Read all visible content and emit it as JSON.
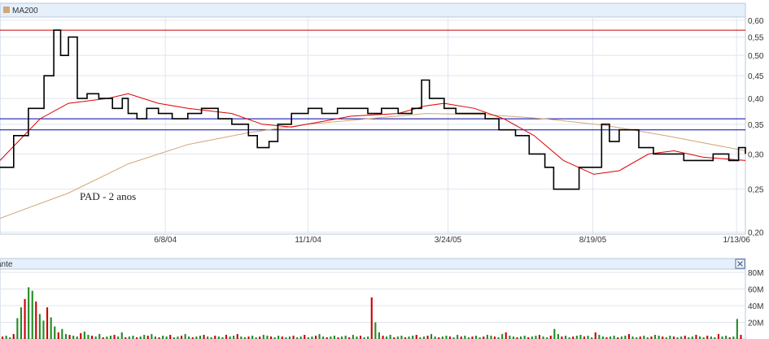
{
  "legend": {
    "ma200_label": "MA200",
    "ma200_color": "#d2a679",
    "volume_label_fragment": "ante"
  },
  "annotation": "PAD - 2 anos",
  "close_icon": "close-icon",
  "colors": {
    "price": "#000000",
    "ma_short": "#dd0000",
    "ma200": "#d2a679",
    "resistance": "#cc0000",
    "support": "#0000aa",
    "volume_up": "#228b22",
    "volume_down": "#cc0000",
    "panel_header": "#e6f0fa"
  },
  "chart_data": [
    {
      "type": "line",
      "title": "",
      "xlabel": "",
      "ylabel": "",
      "ylim": [
        0.2,
        0.6
      ],
      "y_scale": "log",
      "y_ticks": [
        "0,20",
        "0,25",
        "0,30",
        "0,35",
        "0,40",
        "0,45",
        "0,50",
        "0,55",
        "0,60"
      ],
      "x_ticks": [
        "6/8/04",
        "11/1/04",
        "3/24/05",
        "8/19/05",
        "1/13/06"
      ],
      "x_range": [
        "2003-12-22",
        "2006-01-22"
      ],
      "grid": true,
      "horizontal_lines": [
        {
          "kind": "resistance",
          "value": 0.57
        },
        {
          "kind": "support",
          "value": 0.36
        },
        {
          "kind": "support",
          "value": 0.34
        }
      ],
      "series": [
        {
          "name": "",
          "kind": "price",
          "points": [
            [
              "2003-12-22",
              0.28
            ],
            [
              "2004-01-05",
              0.33
            ],
            [
              "2004-01-20",
              0.38
            ],
            [
              "2004-02-05",
              0.45
            ],
            [
              "2004-02-15",
              0.57
            ],
            [
              "2004-02-22",
              0.5
            ],
            [
              "2004-03-01",
              0.55
            ],
            [
              "2004-03-10",
              0.4
            ],
            [
              "2004-03-20",
              0.41
            ],
            [
              "2004-04-01",
              0.4
            ],
            [
              "2004-04-15",
              0.38
            ],
            [
              "2004-04-25",
              0.4
            ],
            [
              "2004-05-01",
              0.37
            ],
            [
              "2004-05-10",
              0.36
            ],
            [
              "2004-05-20",
              0.38
            ],
            [
              "2004-06-01",
              0.37
            ],
            [
              "2004-06-15",
              0.36
            ],
            [
              "2004-07-01",
              0.37
            ],
            [
              "2004-07-15",
              0.38
            ],
            [
              "2004-08-01",
              0.36
            ],
            [
              "2004-08-15",
              0.35
            ],
            [
              "2004-09-01",
              0.33
            ],
            [
              "2004-09-10",
              0.31
            ],
            [
              "2004-09-22",
              0.32
            ],
            [
              "2004-10-01",
              0.35
            ],
            [
              "2004-10-15",
              0.37
            ],
            [
              "2004-11-01",
              0.38
            ],
            [
              "2004-11-15",
              0.37
            ],
            [
              "2004-12-01",
              0.38
            ],
            [
              "2004-12-15",
              0.38
            ],
            [
              "2005-01-01",
              0.37
            ],
            [
              "2005-01-15",
              0.38
            ],
            [
              "2005-02-01",
              0.37
            ],
            [
              "2005-02-15",
              0.38
            ],
            [
              "2005-02-25",
              0.44
            ],
            [
              "2005-03-05",
              0.4
            ],
            [
              "2005-03-20",
              0.38
            ],
            [
              "2005-04-01",
              0.37
            ],
            [
              "2005-04-15",
              0.37
            ],
            [
              "2005-05-01",
              0.36
            ],
            [
              "2005-05-15",
              0.34
            ],
            [
              "2005-06-01",
              0.33
            ],
            [
              "2005-06-15",
              0.3
            ],
            [
              "2005-07-01",
              0.28
            ],
            [
              "2005-07-10",
              0.25
            ],
            [
              "2005-07-25",
              0.25
            ],
            [
              "2005-08-05",
              0.28
            ],
            [
              "2005-08-19",
              0.28
            ],
            [
              "2005-08-28",
              0.35
            ],
            [
              "2005-09-05",
              0.32
            ],
            [
              "2005-09-15",
              0.34
            ],
            [
              "2005-09-25",
              0.34
            ],
            [
              "2005-10-05",
              0.31
            ],
            [
              "2005-10-20",
              0.3
            ],
            [
              "2005-11-05",
              0.3
            ],
            [
              "2005-11-20",
              0.29
            ],
            [
              "2005-12-05",
              0.29
            ],
            [
              "2005-12-20",
              0.3
            ],
            [
              "2006-01-05",
              0.29
            ],
            [
              "2006-01-15",
              0.31
            ],
            [
              "2006-01-22",
              0.3
            ]
          ]
        },
        {
          "name": "",
          "kind": "ma_short",
          "points": [
            [
              "2003-12-22",
              0.29
            ],
            [
              "2004-02-01",
              0.36
            ],
            [
              "2004-03-01",
              0.39
            ],
            [
              "2004-04-10",
              0.4
            ],
            [
              "2004-05-01",
              0.41
            ],
            [
              "2004-06-01",
              0.39
            ],
            [
              "2004-07-01",
              0.38
            ],
            [
              "2004-08-15",
              0.37
            ],
            [
              "2004-09-15",
              0.35
            ],
            [
              "2004-10-15",
              0.345
            ],
            [
              "2004-11-15",
              0.355
            ],
            [
              "2004-12-15",
              0.365
            ],
            [
              "2005-02-01",
              0.37
            ],
            [
              "2005-03-01",
              0.385
            ],
            [
              "2005-03-20",
              0.39
            ],
            [
              "2005-04-20",
              0.38
            ],
            [
              "2005-05-20",
              0.36
            ],
            [
              "2005-06-20",
              0.33
            ],
            [
              "2005-07-20",
              0.29
            ],
            [
              "2005-08-20",
              0.27
            ],
            [
              "2005-09-15",
              0.275
            ],
            [
              "2005-10-15",
              0.3
            ],
            [
              "2005-11-10",
              0.305
            ],
            [
              "2005-12-10",
              0.295
            ],
            [
              "2006-01-22",
              0.29
            ]
          ]
        },
        {
          "name": "MA200",
          "kind": "ma200",
          "points": [
            [
              "2003-12-22",
              0.215
            ],
            [
              "2004-03-01",
              0.245
            ],
            [
              "2004-05-01",
              0.285
            ],
            [
              "2004-07-01",
              0.315
            ],
            [
              "2004-09-01",
              0.335
            ],
            [
              "2004-11-01",
              0.35
            ],
            [
              "2005-01-01",
              0.36
            ],
            [
              "2005-03-01",
              0.37
            ],
            [
              "2005-05-01",
              0.368
            ],
            [
              "2005-07-01",
              0.36
            ],
            [
              "2005-09-01",
              0.348
            ],
            [
              "2005-11-01",
              0.33
            ],
            [
              "2006-01-22",
              0.305
            ]
          ]
        }
      ]
    },
    {
      "type": "bar",
      "title": "",
      "xlabel": "",
      "ylabel": "",
      "ylim": [
        0,
        80
      ],
      "y_ticks": [
        "20M",
        "40M",
        "60M",
        "80M"
      ],
      "unit": "M",
      "series": [
        {
          "name": "",
          "kind": "volume",
          "values": [
            3,
            4,
            2,
            6,
            25,
            38,
            48,
            62,
            58,
            45,
            30,
            22,
            38,
            26,
            15,
            8,
            12,
            6,
            5,
            4,
            3,
            7,
            9,
            5,
            4,
            3,
            6,
            2,
            3,
            4,
            5,
            3,
            8,
            2,
            3,
            4,
            2,
            3,
            5,
            4,
            6,
            3,
            2,
            4,
            3,
            5,
            2,
            3,
            4,
            6,
            3,
            2,
            3,
            4,
            5,
            3,
            2,
            4,
            3,
            2,
            5,
            3,
            4,
            6,
            3,
            2,
            3,
            4,
            2,
            3,
            5,
            4,
            3,
            2,
            4,
            3,
            2,
            3,
            4,
            2,
            3,
            5,
            2,
            3,
            4,
            6,
            3,
            2,
            3,
            4,
            2,
            3,
            4,
            2,
            5,
            3,
            4,
            2,
            3,
            50,
            20,
            8,
            4,
            3,
            5,
            2,
            3,
            4,
            2,
            3,
            4,
            5,
            2,
            3,
            4,
            6,
            3,
            2,
            3,
            4,
            3,
            2,
            5,
            3,
            4,
            2,
            3,
            4,
            2,
            3,
            5,
            4,
            3,
            2,
            6,
            8,
            4,
            3,
            2,
            3,
            4,
            2,
            3,
            4,
            5,
            3,
            2,
            4,
            12,
            6,
            3,
            4,
            2,
            3,
            4,
            5,
            3,
            4,
            2,
            8,
            5,
            3,
            2,
            3,
            4,
            2,
            3,
            4,
            6,
            3,
            2,
            3,
            4,
            2,
            3,
            5,
            4,
            3,
            2,
            4,
            3,
            2,
            3,
            4,
            2,
            3,
            5,
            3,
            2,
            4,
            3,
            2,
            6,
            3,
            4,
            2,
            3,
            24,
            5
          ]
        }
      ]
    }
  ]
}
